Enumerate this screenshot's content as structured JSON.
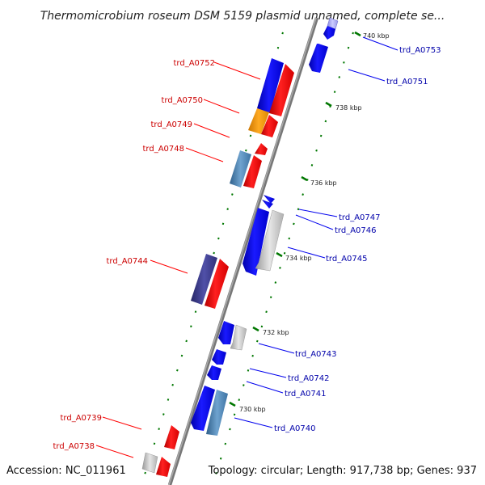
{
  "title": "Thermomicrobium roseum DSM 5159 plasmid unnamed, complete se...",
  "footer": {
    "accession": "Accession: NC_011961",
    "topology": "Topology: circular; Length: 917,738 bp; Genes: 937"
  },
  "colors": {
    "backbone": "#888888",
    "red": "#ff0000",
    "blue": "#0000ee",
    "orange": "#ff9900",
    "steel": "#4682b4",
    "indigo": "#3a3a8c",
    "gray": "#c8c8c8",
    "lavender": "#aaaaee",
    "tick": "#007700",
    "label_red": "#cc0000",
    "label_blue": "#0000aa"
  },
  "kbp_ticks": [
    {
      "label": "740 kbp"
    },
    {
      "label": "738 kbp"
    },
    {
      "label": "736 kbp"
    },
    {
      "label": "734 kbp"
    },
    {
      "label": "732 kbp"
    },
    {
      "label": "730 kbp"
    }
  ],
  "gene_labels": [
    {
      "id": "left-0752",
      "text": "trd_A0752",
      "side": "left"
    },
    {
      "id": "left-0750",
      "text": "trd_A0750",
      "side": "left"
    },
    {
      "id": "left-0749",
      "text": "trd_A0749",
      "side": "left"
    },
    {
      "id": "left-0748",
      "text": "trd_A0748",
      "side": "left"
    },
    {
      "id": "left-0744",
      "text": "trd_A0744",
      "side": "left"
    },
    {
      "id": "left-0739",
      "text": "trd_A0739",
      "side": "left"
    },
    {
      "id": "left-0738",
      "text": "trd_A0738",
      "side": "left"
    },
    {
      "id": "right-0753",
      "text": "trd_A0753",
      "side": "right"
    },
    {
      "id": "right-0751",
      "text": "trd_A0751",
      "side": "right"
    },
    {
      "id": "right-0747",
      "text": "trd_A0747",
      "side": "right"
    },
    {
      "id": "right-0746",
      "text": "trd_A0746",
      "side": "right"
    },
    {
      "id": "right-0745",
      "text": "trd_A0745",
      "side": "right"
    },
    {
      "id": "right-0743",
      "text": "trd_A0743",
      "side": "right"
    },
    {
      "id": "right-0742",
      "text": "trd_A0742",
      "side": "right"
    },
    {
      "id": "right-0741",
      "text": "trd_A0741",
      "side": "right"
    },
    {
      "id": "right-0740",
      "text": "trd_A0740",
      "side": "right"
    }
  ]
}
